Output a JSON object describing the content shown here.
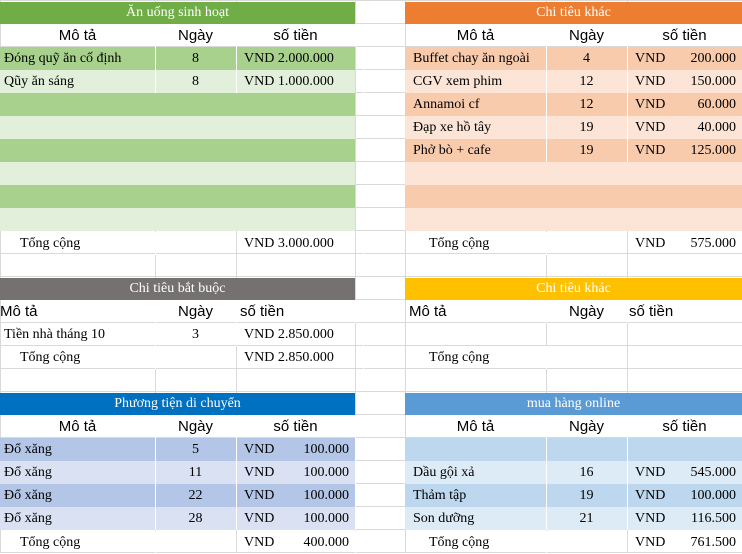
{
  "blocks": {
    "an_uong": {
      "title": "Ăn uống sinh hoạt",
      "headers": [
        "Mô tả",
        "Ngày",
        "số tiền"
      ],
      "rows": [
        {
          "desc": "Đóng quỹ ăn cố định",
          "day": "8",
          "amount": "VND 2.000.000"
        },
        {
          "desc": "Qũy ăn sáng",
          "day": "8",
          "amount": "VND 1.000.000"
        }
      ],
      "total_label": "Tổng cộng",
      "total": "VND 3.000.000"
    },
    "chi_tieu_khac_1": {
      "title": "Chi tiêu khác",
      "headers": [
        "Mô tả",
        "Ngày",
        "số tiền"
      ],
      "rows": [
        {
          "desc": "Buffet chay ăn ngoài",
          "day": "4",
          "cur": "VND",
          "amount": "200.000"
        },
        {
          "desc": "CGV xem phim",
          "day": "12",
          "cur": "VND",
          "amount": "150.000"
        },
        {
          "desc": "Annamoi cf",
          "day": "12",
          "cur": "VND",
          "amount": "60.000"
        },
        {
          "desc": "Đạp xe hồ tây",
          "day": "19",
          "cur": "VND",
          "amount": "40.000"
        },
        {
          "desc": "Phở bò + cafe",
          "day": "19",
          "cur": "VND",
          "amount": "125.000"
        }
      ],
      "total_label": "Tổng cộng",
      "total_cur": "VND",
      "total": "575.000"
    },
    "bat_buoc": {
      "title": "Chi tiêu bắt buộc",
      "headers": [
        "Mô tả",
        "Ngày",
        "số tiền"
      ],
      "rows": [
        {
          "desc": "Tiền nhà tháng 10",
          "day": "3",
          "amount": "VND 2.850.000"
        }
      ],
      "total_label": "Tổng cộng",
      "total": "VND 2.850.000"
    },
    "chi_tieu_khac_2": {
      "title": "Chi tiêu khác",
      "headers": [
        "Mô tả",
        "Ngày",
        "số tiền"
      ],
      "total_label": "Tổng cộng"
    },
    "phuong_tien": {
      "title": "Phương tiện di chuyển",
      "headers": [
        "Mô tả",
        "Ngày",
        "số tiền"
      ],
      "rows": [
        {
          "desc": "Đổ xăng",
          "day": "5",
          "cur": "VND",
          "amount": "100.000"
        },
        {
          "desc": "Đổ xăng",
          "day": "11",
          "cur": "VND",
          "amount": "100.000"
        },
        {
          "desc": "Đổ xăng",
          "day": "22",
          "cur": "VND",
          "amount": "100.000"
        },
        {
          "desc": "Đổ xăng",
          "day": "28",
          "cur": "VND",
          "amount": "100.000"
        }
      ],
      "total_label": "Tổng cộng",
      "total_cur": "VND",
      "total": "400.000"
    },
    "mua_hang": {
      "title": "mua hàng online",
      "headers": [
        "Mô tả",
        "Ngày",
        "số tiền"
      ],
      "rows": [
        {
          "desc": "",
          "day": "",
          "cur": "",
          "amount": ""
        },
        {
          "desc": "Dầu gội xả",
          "day": "16",
          "cur": "VND",
          "amount": "545.000"
        },
        {
          "desc": "Thảm tập",
          "day": "19",
          "cur": "VND",
          "amount": "100.000"
        },
        {
          "desc": "Son dưỡng",
          "day": "21",
          "cur": "VND",
          "amount": "116.500"
        }
      ],
      "total_label": "Tổng cộng",
      "total_cur": "VND",
      "total": "761.500"
    }
  },
  "colors": {
    "green_title": "#70ad47",
    "green_dark": "#a9d18e",
    "green_light": "#e2efda",
    "orange_title": "#ed7d31",
    "orange_dark": "#f8cbad",
    "orange_light": "#fce4d6",
    "gray_title": "#757171",
    "yellow_title": "#ffc000",
    "blue_title": "#0070c0",
    "blue_title_light": "#5b9bd5",
    "blue_dark": "#b4c6e7",
    "blue_light": "#d9e1f2",
    "blue_row": "#bdd7ee",
    "blue_row_light": "#ddebf7"
  }
}
